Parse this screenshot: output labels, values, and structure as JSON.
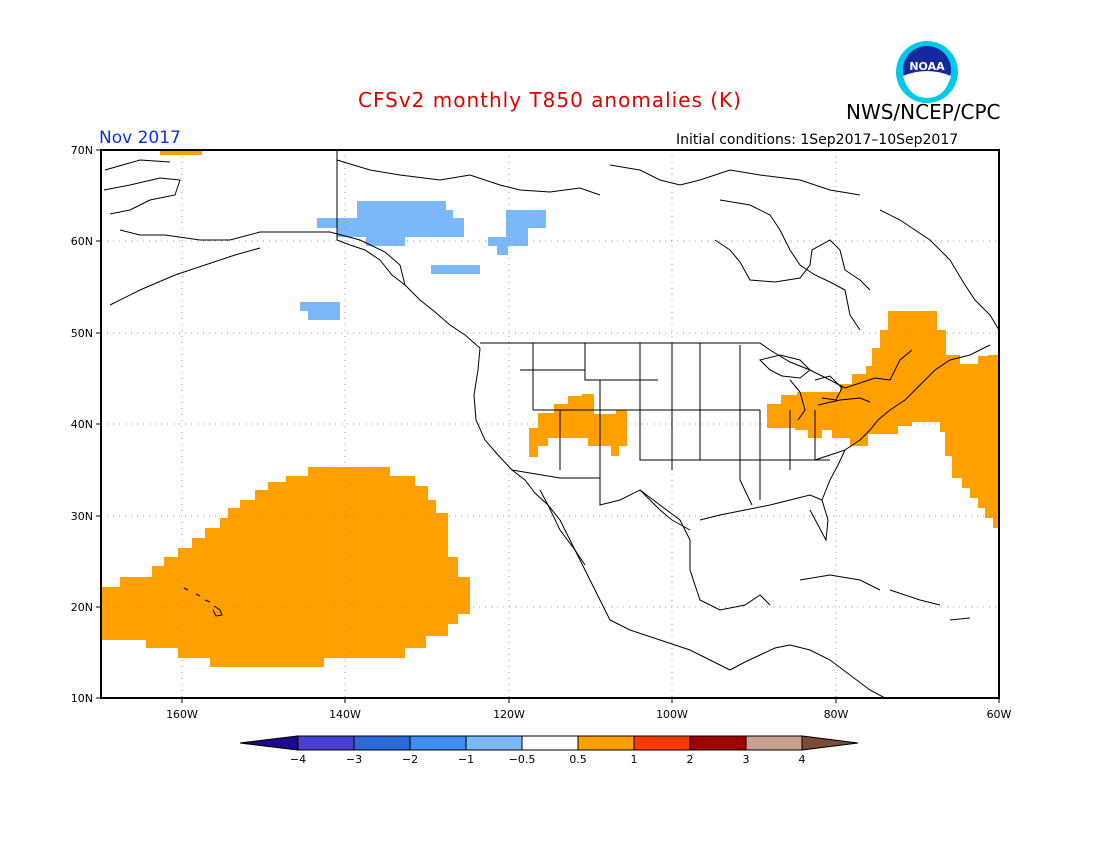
{
  "title": "CFSv2 monthly T850 anomalies (K)",
  "agency": "NWS/NCEP/CPC",
  "logo_text": "NOAA",
  "month": "Nov 2017",
  "initial_conditions": "Initial conditions: 1Sep2017–10Sep2017",
  "lat_labels": [
    "70N",
    "60N",
    "50N",
    "40N",
    "30N",
    "20N",
    "10N"
  ],
  "lon_labels": [
    "160W",
    "140W",
    "120W",
    "100W",
    "80W",
    "60W"
  ],
  "colorbar": {
    "tick_labels": [
      "−4",
      "−3",
      "−2",
      "−1",
      "−0.5",
      "0.5",
      "1",
      "2",
      "3",
      "4"
    ],
    "colors": [
      "#1a0a8c",
      "#4a3fd0",
      "#2a6ad8",
      "#3d8ef0",
      "#7ab8f8",
      "#ffffff",
      "#ffa000",
      "#ff3a00",
      "#a00000",
      "#c8a090",
      "#7a4a3a"
    ]
  },
  "anomaly_classes": {
    "warm": "0.5 to 1",
    "cool": "-1 to -0.5"
  }
}
